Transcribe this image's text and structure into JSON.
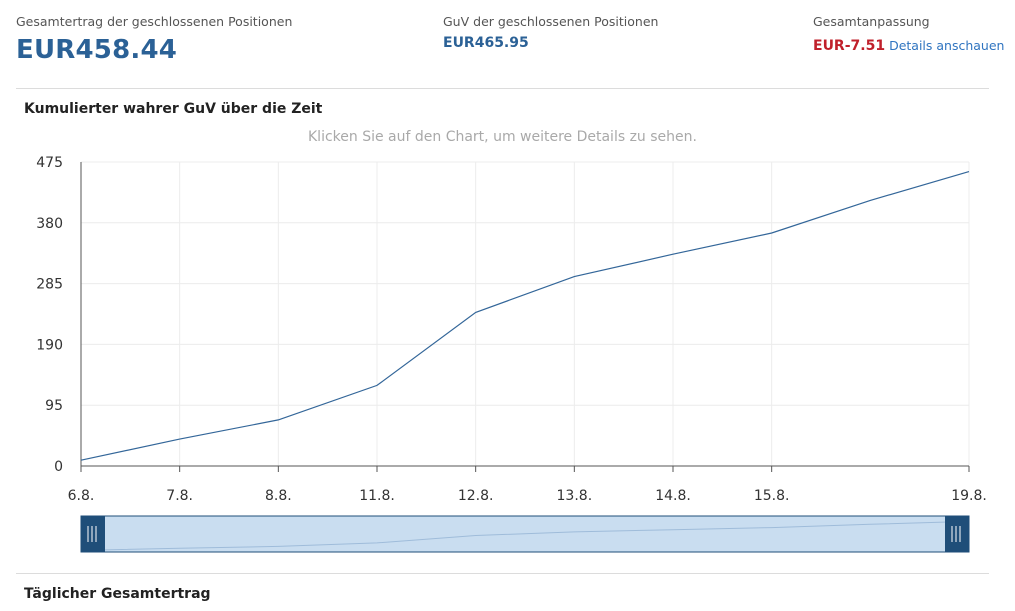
{
  "summary": {
    "total_return_label": "Gesamtertrag der geschlossenen Positionen",
    "total_return_value": "EUR458.44",
    "pnl_label": "GuV der geschlossenen Positionen",
    "pnl_value": "EUR465.95",
    "adjustment_label": "Gesamtanpassung",
    "adjustment_value": "EUR-7.51",
    "details_link": "Details anschauen"
  },
  "chart_section": {
    "title": "Kumulierter wahrer GuV über die Zeit",
    "hint": "Klicken Sie auf den Chart, um weitere Details zu sehen."
  },
  "daily_section": {
    "title": "Täglicher Gesamtertrag"
  },
  "colors": {
    "line": "#336699",
    "navigator_fill": "#c9ddf0",
    "navigator_handle": "#1f4e79",
    "negative": "#c0202b",
    "accent": "#2b6196"
  },
  "chart_data": {
    "type": "line",
    "title": "Kumulierter wahrer GuV über die Zeit",
    "xlabel": "",
    "ylabel": "",
    "x": [
      0,
      1,
      2,
      3,
      4,
      5,
      6,
      7,
      8,
      9
    ],
    "values": [
      9,
      42,
      72,
      126,
      240,
      296,
      331,
      364,
      415,
      460
    ],
    "xticks": [
      {
        "x": 0,
        "label": "6.8."
      },
      {
        "x": 1,
        "label": "7.8."
      },
      {
        "x": 2,
        "label": "8.8."
      },
      {
        "x": 3,
        "label": "11.8."
      },
      {
        "x": 4,
        "label": "12.8."
      },
      {
        "x": 5,
        "label": "13.8."
      },
      {
        "x": 6,
        "label": "14.8."
      },
      {
        "x": 7,
        "label": "15.8."
      },
      {
        "x": 9,
        "label": "19.8."
      }
    ],
    "yticks": [
      0,
      95,
      190,
      285,
      380,
      475
    ],
    "ylim": [
      0,
      475
    ],
    "xlim": [
      0,
      9
    ],
    "grid": true,
    "navigator": true
  }
}
